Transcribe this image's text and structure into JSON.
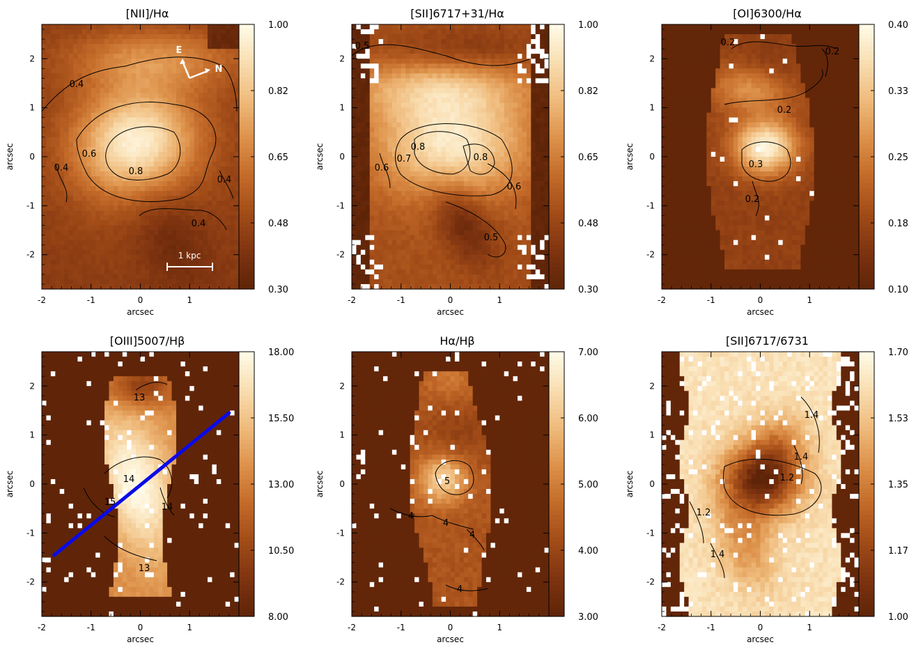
{
  "chart_data": [
    {
      "type": "heatmap",
      "title": "[NII]/Hα",
      "xlabel": "arcsec",
      "ylabel": "arcsec",
      "xlim": [
        -2,
        2
      ],
      "ylim": [
        -2.7,
        2.7
      ],
      "xticks": [
        "-2",
        "-1",
        "0",
        "1"
      ],
      "yticks": [
        "2",
        "1",
        "0",
        "-1",
        "-2"
      ],
      "colorbar_ticks": [
        "1.00",
        "0.82",
        "0.65",
        "0.48",
        "0.30"
      ],
      "clim": [
        0.3,
        1.0
      ],
      "contour_labels": [
        "0.4",
        "0.6",
        "0.8",
        "0.4",
        "0.4",
        "0.4"
      ],
      "compass": {
        "east": "E",
        "north": "N"
      },
      "scale_bar": "1 kpc"
    },
    {
      "type": "heatmap",
      "title": "[SII]6717+31/Hα",
      "xlabel": "arcsec",
      "ylabel": "arcsec",
      "xlim": [
        -2,
        2
      ],
      "ylim": [
        -2.7,
        2.7
      ],
      "xticks": [
        "-2",
        "-1",
        "0",
        "1"
      ],
      "yticks": [
        "2",
        "1",
        "0",
        "-1",
        "-2"
      ],
      "colorbar_ticks": [
        "1.00",
        "0.82",
        "0.65",
        "0.48",
        "0.30"
      ],
      "clim": [
        0.3,
        1.0
      ],
      "contour_labels": [
        "0.5",
        "0.7",
        "0.8",
        "0.8",
        "0.6",
        "0.6",
        "0.5"
      ]
    },
    {
      "type": "heatmap",
      "title": "[OI]6300/Hα",
      "xlabel": "arcsec",
      "ylabel": "arcsec",
      "xlim": [
        -2,
        2
      ],
      "ylim": [
        -2.7,
        2.7
      ],
      "xticks": [
        "-2",
        "-1",
        "0",
        "1"
      ],
      "yticks": [
        "2",
        "1",
        "0",
        "-1",
        "-2"
      ],
      "colorbar_ticks": [
        "0.40",
        "0.33",
        "0.25",
        "0.18",
        "0.10"
      ],
      "clim": [
        0.1,
        0.4
      ],
      "contour_labels": [
        "0.2",
        "0.2",
        "0.2",
        "0.3",
        "0.2"
      ]
    },
    {
      "type": "heatmap",
      "title": "[OIII]5007/Hβ",
      "xlabel": "arcsec",
      "ylabel": "arcsec",
      "xlim": [
        -2,
        2
      ],
      "ylim": [
        -2.7,
        2.7
      ],
      "xticks": [
        "-2",
        "-1",
        "0",
        "1"
      ],
      "yticks": [
        "2",
        "1",
        "0",
        "-1",
        "-2"
      ],
      "colorbar_ticks": [
        "18.00",
        "15.50",
        "13.00",
        "10.50",
        "8.00"
      ],
      "clim": [
        8.0,
        18.0
      ],
      "contour_labels": [
        "13",
        "14",
        "15",
        "14",
        "13"
      ],
      "slit_line": {
        "x": [
          -1.75,
          1.8
        ],
        "y": [
          -1.45,
          1.45
        ],
        "color": "#0a0ae8"
      }
    },
    {
      "type": "heatmap",
      "title": "Hα/Hβ",
      "xlabel": "arcsec",
      "ylabel": "arcsec",
      "xlim": [
        -2,
        2
      ],
      "ylim": [
        -2.7,
        2.7
      ],
      "xticks": [
        "-2",
        "-1",
        "0",
        "1"
      ],
      "yticks": [
        "2",
        "1",
        "0",
        "-1",
        "-2"
      ],
      "colorbar_ticks": [
        "7.00",
        "6.00",
        "5.00",
        "4.00",
        "3.00"
      ],
      "clim": [
        3.0,
        7.0
      ],
      "contour_labels": [
        "5",
        "4",
        "4",
        "4",
        "4"
      ]
    },
    {
      "type": "heatmap",
      "title": "[SII]6717/6731",
      "xlabel": "arcsec",
      "ylabel": "arcsec",
      "xlim": [
        -2,
        2
      ],
      "ylim": [
        -2.7,
        2.7
      ],
      "xticks": [
        "-2",
        "-1",
        "0",
        "1"
      ],
      "yticks": [
        "2",
        "1",
        "0",
        "-1",
        "-2"
      ],
      "colorbar_ticks": [
        "1.70",
        "1.53",
        "1.35",
        "1.17",
        "1.00"
      ],
      "clim": [
        1.0,
        1.7
      ],
      "contour_labels": [
        "1.4",
        "1.4",
        "1.2",
        "1.2",
        "1.4"
      ]
    }
  ],
  "colors": {
    "colormap": [
      "#5e2408",
      "#7f3410",
      "#a24c18",
      "#c46b2a",
      "#dd924b",
      "#efbb7c",
      "#f9deb2",
      "#fffbe8"
    ],
    "masked": "#ffffff",
    "background": "#5e2408"
  }
}
